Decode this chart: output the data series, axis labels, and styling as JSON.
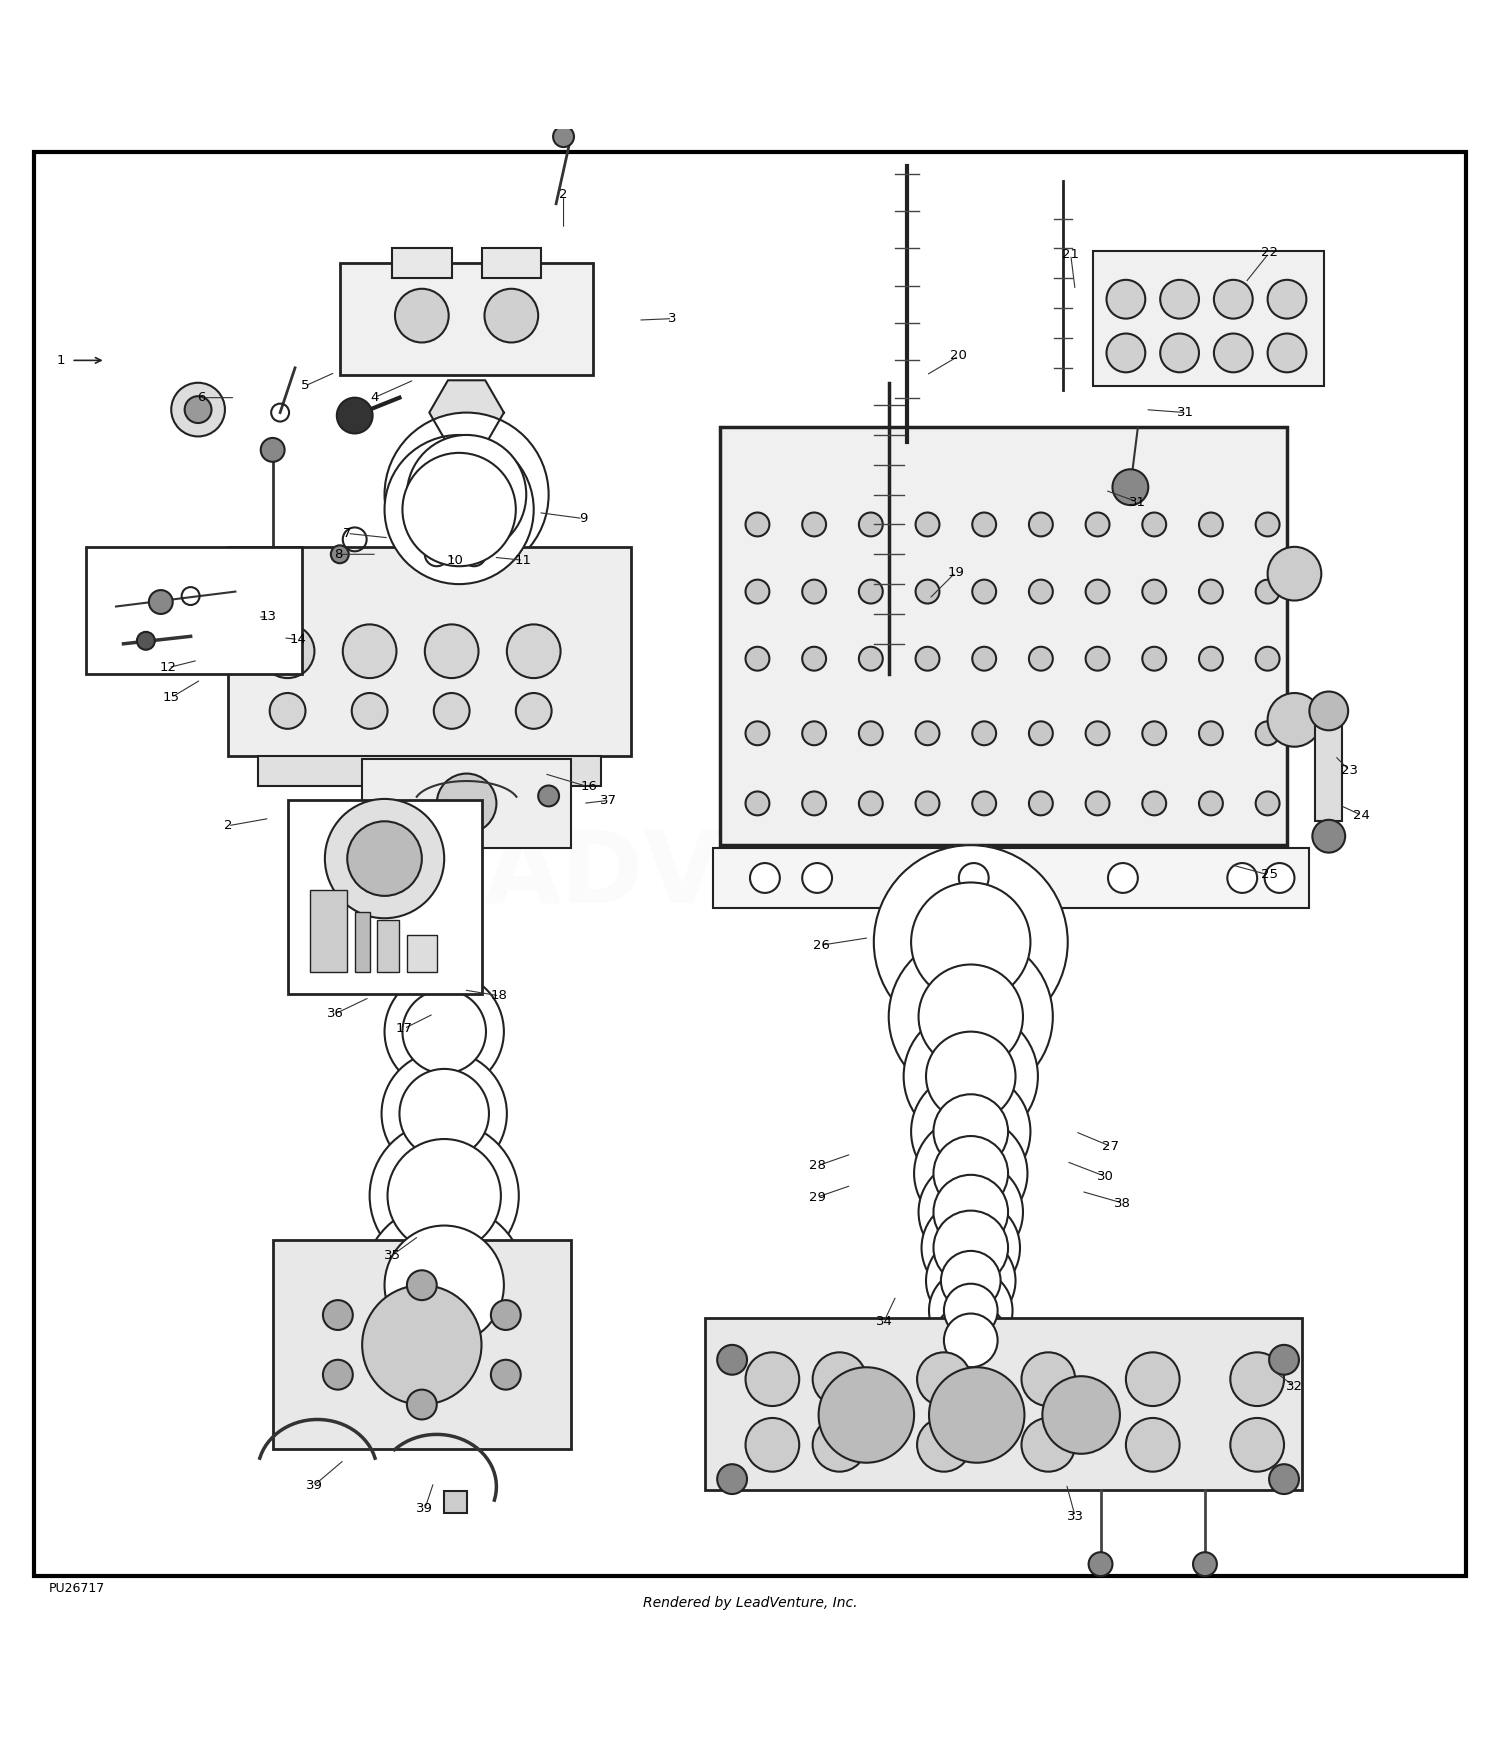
{
  "title": "",
  "footer_left": "PU26717",
  "footer_center": "Rendered by LeadVenture, Inc.",
  "background_color": "#ffffff",
  "border_color": "#000000",
  "text_color": "#000000",
  "figsize": [
    15.0,
    17.5
  ],
  "dpi": 100
}
